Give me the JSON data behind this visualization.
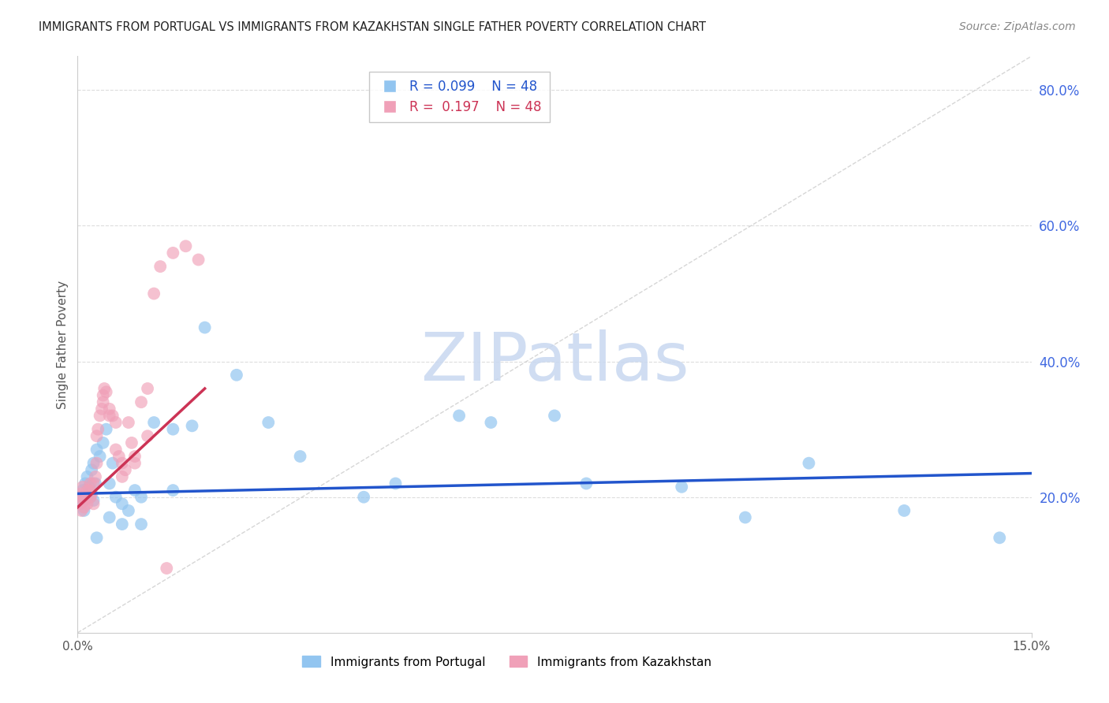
{
  "title": "IMMIGRANTS FROM PORTUGAL VS IMMIGRANTS FROM KAZAKHSTAN SINGLE FATHER POVERTY CORRELATION CHART",
  "source": "Source: ZipAtlas.com",
  "ylabel_right_ticks": [
    20.0,
    40.0,
    60.0,
    80.0
  ],
  "xlim": [
    0.0,
    15.0
  ],
  "ylim": [
    0.0,
    85.0
  ],
  "ylabel": "Single Father Poverty",
  "legend_entries": [
    {
      "label": "Immigrants from Portugal",
      "color": "#92c5f0",
      "R": "0.099",
      "N": "48"
    },
    {
      "label": "Immigrants from Kazakhstan",
      "color": "#f0a0b8",
      "R": "0.197",
      "N": "48"
    }
  ],
  "portugal_x": [
    0.05,
    0.08,
    0.1,
    0.12,
    0.15,
    0.18,
    0.2,
    0.22,
    0.25,
    0.28,
    0.3,
    0.35,
    0.4,
    0.45,
    0.5,
    0.55,
    0.6,
    0.7,
    0.8,
    0.9,
    1.0,
    1.2,
    1.5,
    1.8,
    2.0,
    2.5,
    3.0,
    3.5,
    4.5,
    5.0,
    6.0,
    6.5,
    7.5,
    8.0,
    9.5,
    10.5,
    11.5,
    13.0,
    14.5,
    0.05,
    0.1,
    0.15,
    0.25,
    0.3,
    0.5,
    0.7,
    1.0,
    1.5
  ],
  "portugal_y": [
    20.0,
    21.0,
    19.5,
    22.0,
    23.0,
    21.5,
    20.0,
    24.0,
    25.0,
    22.0,
    27.0,
    26.0,
    28.0,
    30.0,
    22.0,
    25.0,
    20.0,
    19.0,
    18.0,
    21.0,
    20.0,
    31.0,
    30.0,
    30.5,
    45.0,
    38.0,
    31.0,
    26.0,
    20.0,
    22.0,
    32.0,
    31.0,
    32.0,
    22.0,
    21.5,
    17.0,
    25.0,
    18.0,
    14.0,
    19.0,
    18.0,
    20.0,
    19.5,
    14.0,
    17.0,
    16.0,
    16.0,
    21.0
  ],
  "kazakhstan_x": [
    0.02,
    0.04,
    0.06,
    0.08,
    0.1,
    0.12,
    0.15,
    0.18,
    0.2,
    0.22,
    0.25,
    0.28,
    0.3,
    0.32,
    0.35,
    0.38,
    0.4,
    0.42,
    0.45,
    0.5,
    0.55,
    0.6,
    0.65,
    0.7,
    0.75,
    0.8,
    0.85,
    0.9,
    1.0,
    1.1,
    1.2,
    1.3,
    1.5,
    1.7,
    1.9,
    0.05,
    0.1,
    0.15,
    0.2,
    0.25,
    0.3,
    0.4,
    0.5,
    0.6,
    0.7,
    0.9,
    1.1,
    1.4
  ],
  "kazakhstan_y": [
    19.0,
    20.0,
    18.0,
    21.5,
    18.5,
    20.0,
    19.0,
    21.0,
    22.0,
    20.5,
    19.0,
    23.0,
    29.0,
    30.0,
    32.0,
    33.0,
    35.0,
    36.0,
    35.5,
    33.0,
    32.0,
    27.0,
    26.0,
    25.0,
    24.0,
    31.0,
    28.0,
    26.0,
    34.0,
    36.0,
    50.0,
    54.0,
    56.0,
    57.0,
    55.0,
    20.5,
    19.5,
    21.0,
    20.0,
    22.0,
    25.0,
    34.0,
    32.0,
    31.0,
    23.0,
    25.0,
    29.0,
    9.5
  ],
  "blue_line_color": "#2255cc",
  "pink_line_color": "#cc3355",
  "diagonal_line_color": "#cccccc",
  "grid_color": "#dddddd",
  "watermark": "ZIPatlas",
  "watermark_color": "#c8d8f0",
  "right_axis_color": "#4169e1",
  "background_color": "#ffffff",
  "portugal_trend_x": [
    0.0,
    15.0
  ],
  "portugal_trend_y": [
    20.5,
    23.5
  ],
  "kazakhstan_trend_x": [
    0.0,
    2.0
  ],
  "kazakhstan_trend_y": [
    18.5,
    36.0
  ]
}
